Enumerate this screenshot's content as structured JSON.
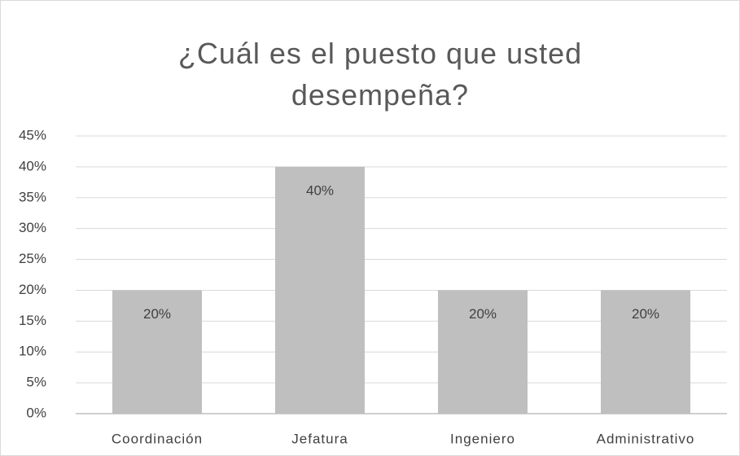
{
  "chart_data": {
    "type": "bar",
    "title": "¿Cuál es el puesto que usted desempeña?",
    "categories": [
      "Coordinación",
      "Jefatura",
      "Ingeniero",
      "Administrativo"
    ],
    "values": [
      20,
      40,
      20,
      20
    ],
    "value_labels": [
      "20%",
      "40%",
      "20%",
      "20%"
    ],
    "color": "#bfbfbf",
    "ylim": [
      0,
      45
    ],
    "yticks": [
      {
        "value": 0,
        "label": "0%"
      },
      {
        "value": 5,
        "label": "5%"
      },
      {
        "value": 10,
        "label": "10%"
      },
      {
        "value": 15,
        "label": "15%"
      },
      {
        "value": 20,
        "label": "20%"
      },
      {
        "value": 25,
        "label": "25%"
      },
      {
        "value": 30,
        "label": "30%"
      },
      {
        "value": 35,
        "label": "35%"
      },
      {
        "value": 40,
        "label": "40%"
      },
      {
        "value": 45,
        "label": "45%"
      }
    ],
    "grid": true
  }
}
